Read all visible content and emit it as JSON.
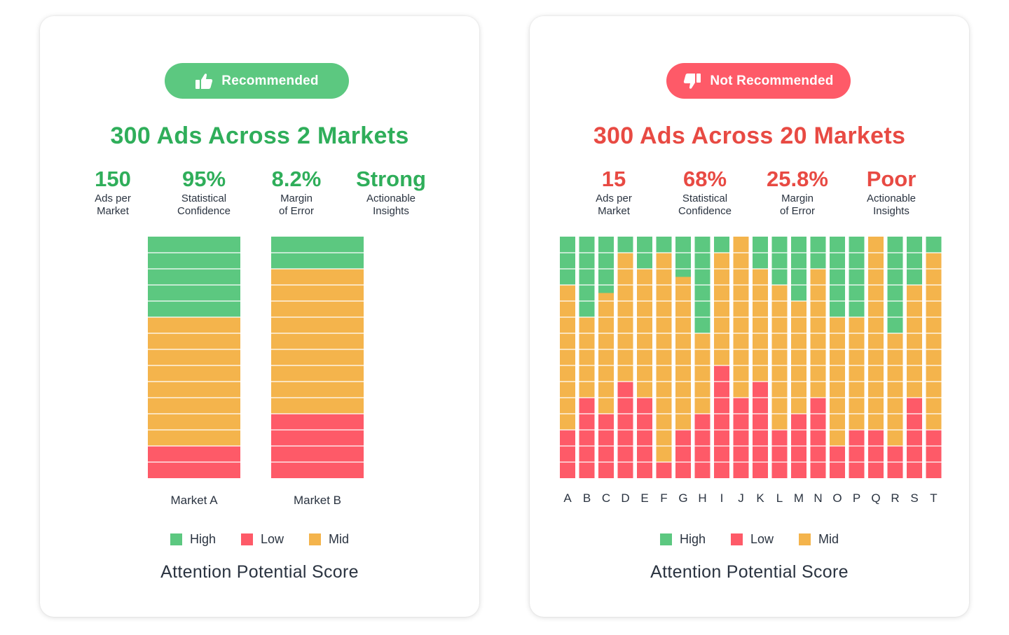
{
  "colors": {
    "high": "#5cc880",
    "low": "#fe5a68",
    "mid": "#f4b44c",
    "good": "#2fae5a",
    "bad": "#e84a43",
    "text": "#2a3340"
  },
  "left": {
    "badge": {
      "label": "Recommended",
      "icon": "thumbs-up-icon"
    },
    "headline": "300 Ads Across 2 Markets",
    "stats": [
      {
        "value": "150",
        "label": "Ads per\nMarket"
      },
      {
        "value": "95%",
        "label": "Statistical\nConfidence"
      },
      {
        "value": "8.2%",
        "label": "Margin\nof Error"
      },
      {
        "value": "Strong",
        "label": "Actionable\nInsights"
      }
    ],
    "legend": [
      {
        "key": "high",
        "label": "High"
      },
      {
        "key": "low",
        "label": "Low"
      },
      {
        "key": "mid",
        "label": "Mid"
      }
    ],
    "footer": "Attention Potential Score"
  },
  "right": {
    "badge": {
      "label": "Not Recommended",
      "icon": "thumbs-down-icon"
    },
    "headline": "300 Ads Across 20 Markets",
    "stats": [
      {
        "value": "15",
        "label": "Ads per\nMarket"
      },
      {
        "value": "68%",
        "label": "Statistical\nConfidence"
      },
      {
        "value": "25.8%",
        "label": "Margin\nof Error"
      },
      {
        "value": "Poor",
        "label": "Actionable\nInsights"
      }
    ],
    "legend": [
      {
        "key": "high",
        "label": "High"
      },
      {
        "key": "low",
        "label": "Low"
      },
      {
        "key": "mid",
        "label": "Mid"
      }
    ],
    "footer": "Attention Potential Score"
  },
  "chart_data": [
    {
      "type": "bar",
      "stacked": true,
      "title": "300 Ads Across 2 Markets",
      "xlabel": "Attention Potential Score",
      "categories": [
        "Market A",
        "Market B"
      ],
      "units_per_bar": 15,
      "series": [
        {
          "name": "High",
          "key": "high",
          "values": [
            5,
            2
          ]
        },
        {
          "name": "Mid",
          "key": "mid",
          "values": [
            8,
            9
          ]
        },
        {
          "name": "Low",
          "key": "low",
          "values": [
            2,
            4
          ]
        }
      ]
    },
    {
      "type": "bar",
      "stacked": true,
      "title": "300 Ads Across 20 Markets",
      "xlabel": "Attention Potential Score",
      "categories": [
        "A",
        "B",
        "C",
        "D",
        "E",
        "F",
        "G",
        "H",
        "I",
        "J",
        "K",
        "L",
        "M",
        "N",
        "O",
        "P",
        "Q",
        "R",
        "S",
        "T"
      ],
      "units_per_bar": 15,
      "series": [
        {
          "name": "High",
          "key": "high",
          "values": [
            3,
            5,
            3.5,
            1,
            2,
            1,
            2.5,
            6,
            1,
            0,
            2,
            3,
            4,
            2,
            5,
            5,
            0,
            6,
            3,
            1
          ]
        },
        {
          "name": "Mid",
          "key": "mid",
          "values": [
            9,
            5,
            7.5,
            8,
            8,
            13,
            9.5,
            5,
            7,
            10,
            7,
            9,
            7,
            8,
            8,
            7,
            12,
            7,
            7,
            11
          ]
        },
        {
          "name": "Low",
          "key": "low",
          "values": [
            3,
            5,
            4,
            6,
            5,
            1,
            3,
            4,
            7,
            5,
            6,
            3,
            4,
            5,
            2,
            3,
            3,
            2,
            5,
            3
          ]
        }
      ]
    }
  ]
}
